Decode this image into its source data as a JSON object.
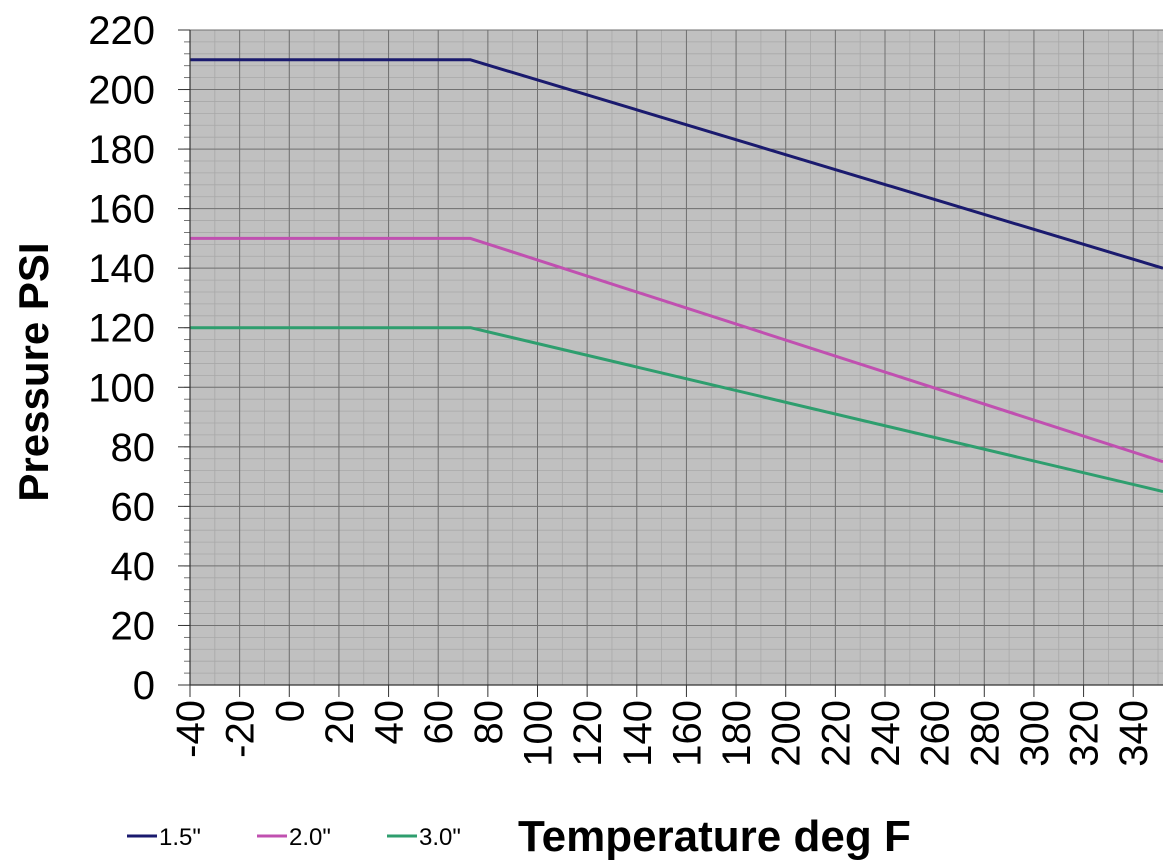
{
  "chart_data": {
    "type": "line",
    "title": "",
    "xlabel": "Temperature deg F",
    "ylabel": "Pressure PSI",
    "xlim": [
      -40,
      352
    ],
    "ylim": [
      0,
      220
    ],
    "x_ticks": [
      -40,
      -20,
      0,
      20,
      40,
      60,
      80,
      100,
      120,
      140,
      160,
      180,
      200,
      220,
      240,
      260,
      280,
      300,
      320,
      340
    ],
    "y_ticks": [
      0,
      20,
      40,
      60,
      80,
      100,
      120,
      140,
      160,
      180,
      200,
      220
    ],
    "x_minor_step": 10,
    "y_minor_step": 4,
    "grid": true,
    "background": "#c0c0c0",
    "legend_position": "bottom-left",
    "series": [
      {
        "name": "1.5\"",
        "color": "#1a1a6e",
        "x": [
          -40,
          73,
          352
        ],
        "y": [
          210,
          210,
          140
        ]
      },
      {
        "name": "2.0\"",
        "color": "#c050b0",
        "x": [
          -40,
          73,
          352
        ],
        "y": [
          150,
          150,
          75
        ]
      },
      {
        "name": "3.0\"",
        "color": "#2e9e6e",
        "x": [
          -40,
          73,
          352
        ],
        "y": [
          120,
          120,
          65
        ]
      }
    ]
  }
}
